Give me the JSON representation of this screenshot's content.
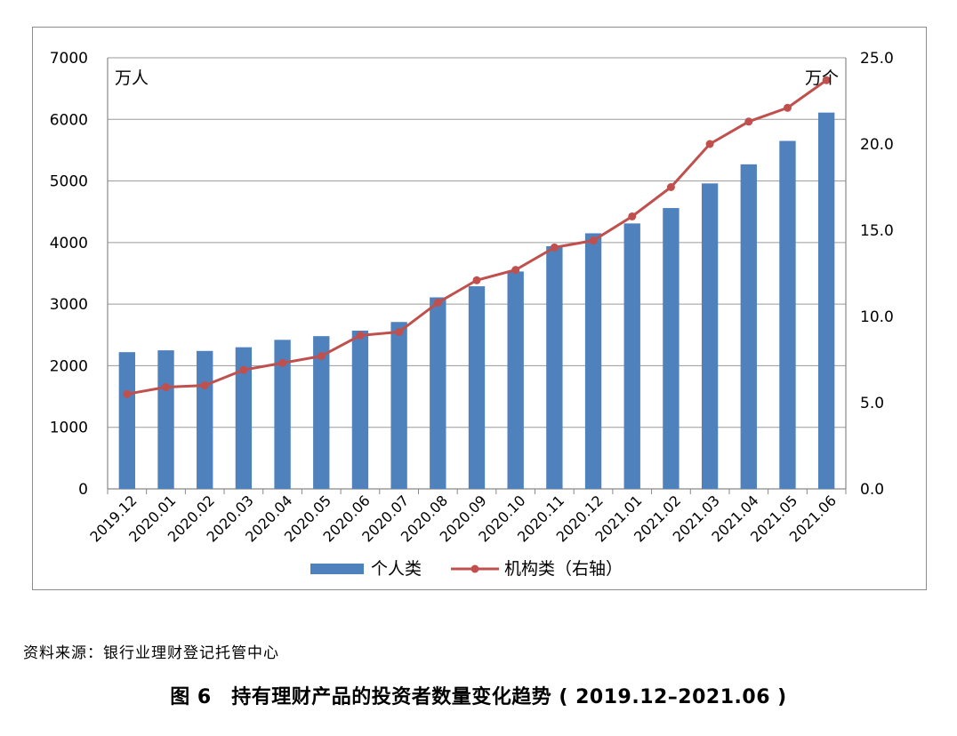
{
  "chart_data": {
    "type": "bar",
    "categories": [
      "2019.12",
      "2020.01",
      "2020.02",
      "2020.03",
      "2020.04",
      "2020.05",
      "2020.06",
      "2020.07",
      "2020.08",
      "2020.09",
      "2020.10",
      "2020.11",
      "2020.12",
      "2021.01",
      "2021.02",
      "2021.03",
      "2021.04",
      "2021.05",
      "2021.06"
    ],
    "series": [
      {
        "name": "个人类",
        "type": "bar",
        "axis": "left",
        "color": "#4f81bd",
        "values": [
          2220,
          2250,
          2240,
          2300,
          2420,
          2480,
          2570,
          2710,
          3110,
          3290,
          3530,
          3940,
          4150,
          4310,
          4560,
          4960,
          5270,
          5650,
          6110
        ]
      },
      {
        "name": "机构类（右轴）",
        "type": "line",
        "axis": "right",
        "color": "#c0504d",
        "values": [
          5.5,
          5.9,
          6.0,
          6.9,
          7.3,
          7.7,
          8.9,
          9.1,
          10.8,
          12.1,
          12.7,
          14.0,
          14.4,
          15.8,
          17.5,
          20.0,
          21.3,
          22.1,
          23.7
        ]
      }
    ],
    "left_axis": {
      "unit_label": "万人",
      "ylim": [
        0,
        7000
      ],
      "ticks": [
        "0",
        "1000",
        "2000",
        "3000",
        "4000",
        "5000",
        "6000",
        "7000"
      ]
    },
    "right_axis": {
      "unit_label": "万个",
      "ylim": [
        0,
        25
      ],
      "ticks": [
        "0.0",
        "5.0",
        "10.0",
        "15.0",
        "20.0",
        "25.0"
      ]
    },
    "grid": true,
    "legend_position": "bottom"
  },
  "source_text": "资料来源：银行业理财登记托管中心",
  "caption": "图 6　持有理财产品的投资者数量变化趋势 ( 2019.12–2021.06 )"
}
